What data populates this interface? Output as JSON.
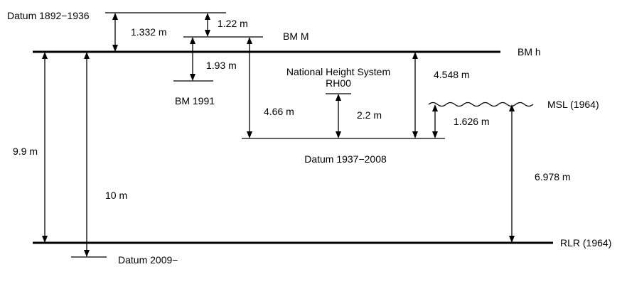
{
  "levels": {
    "datum_1892_1936": "Datum 1892−1936",
    "bm_m": "BM M",
    "bm_h": "BM h",
    "bm_1991": "BM  1991",
    "national_height_system": "National Height System",
    "rh00": "RH00",
    "msl_1964": "MSL (1964)",
    "datum_1937_2008": "Datum 1937−2008",
    "rlr_1964": "RLR (1964)",
    "datum_2009": "Datum 2009−"
  },
  "distances": {
    "d_1332": "1.332 m",
    "d_122": "1.22 m",
    "d_193": "1.93 m",
    "d_466": "4.66 m",
    "d_22": "2.2 m",
    "d_4548": "4.548 m",
    "d_1626": "1.626 m",
    "d_6978": "6.978 m",
    "d_99": "9.9 m",
    "d_10": "10 m"
  }
}
